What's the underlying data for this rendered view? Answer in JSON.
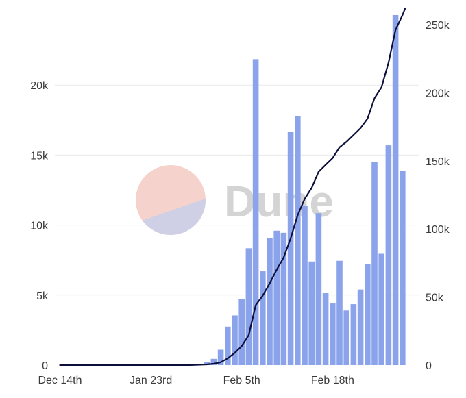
{
  "watermark": {
    "text": "Dune",
    "colors": {
      "top": "#f5d2cb",
      "bottom": "#cfd0e6",
      "text": "#d4d4d4"
    }
  },
  "colors": {
    "bar": "#8aa3ea",
    "line": "#0d0f3a",
    "grid": "#e9e9ee"
  },
  "chart_data": {
    "type": "bar",
    "combo_line": true,
    "grid": true,
    "legend": "none",
    "x_ticks": [
      {
        "label": "Dec 14th",
        "day": 0
      },
      {
        "label": "Jan 23rd",
        "day": 13
      },
      {
        "label": "Feb 5th",
        "day": 26
      },
      {
        "label": "Feb 18th",
        "day": 39
      }
    ],
    "y_left": {
      "ticks": [
        "0",
        "5k",
        "10k",
        "15k",
        "20k"
      ],
      "tick_values": [
        0,
        5000,
        10000,
        15000,
        20000
      ],
      "range": [
        0,
        25000
      ]
    },
    "y_right": {
      "ticks": [
        "0",
        "50k",
        "100k",
        "150k",
        "200k",
        "250k"
      ],
      "tick_values": [
        0,
        50000,
        100000,
        150000,
        200000,
        250000
      ],
      "range": [
        0,
        257000
      ]
    },
    "days": [
      0,
      1,
      2,
      3,
      4,
      5,
      6,
      7,
      8,
      9,
      10,
      11,
      12,
      13,
      14,
      15,
      16,
      17,
      18,
      19,
      20,
      21,
      22,
      23,
      24,
      25,
      26,
      27,
      28,
      29,
      30,
      31,
      32,
      33,
      34,
      35,
      36,
      37,
      38,
      39,
      40,
      41,
      42,
      43,
      44,
      45,
      46,
      47,
      48,
      49,
      50,
      51
    ],
    "series": [
      {
        "kind": "bar",
        "axis": "left",
        "values": [
          0,
          0,
          0,
          0,
          0,
          0,
          0,
          0,
          0,
          0,
          0,
          0,
          0,
          0,
          0,
          0,
          0,
          0,
          0,
          50,
          100,
          200,
          450,
          1100,
          2750,
          3550,
          4700,
          8350,
          21850,
          6700,
          9100,
          9600,
          9450,
          16650,
          17800,
          11400,
          7400,
          10850,
          5150,
          4400,
          7450,
          3900,
          4350,
          5400,
          7200,
          14500,
          7950,
          15700,
          25000,
          13850,
          0,
          0
        ]
      },
      {
        "kind": "line",
        "axis": "right",
        "values": [
          0,
          0,
          0,
          0,
          0,
          0,
          0,
          0,
          0,
          0,
          0,
          0,
          0,
          0,
          0,
          0,
          0,
          0,
          0,
          100,
          300,
          500,
          1000,
          2100,
          5000,
          9000,
          14000,
          22000,
          44000,
          51000,
          60000,
          70000,
          79000,
          93000,
          110000,
          122000,
          130000,
          142000,
          147000,
          152000,
          160000,
          164000,
          169000,
          174000,
          181000,
          196000,
          204000,
          222000,
          246000,
          257000,
          257000,
          257000
        ]
      }
    ]
  }
}
